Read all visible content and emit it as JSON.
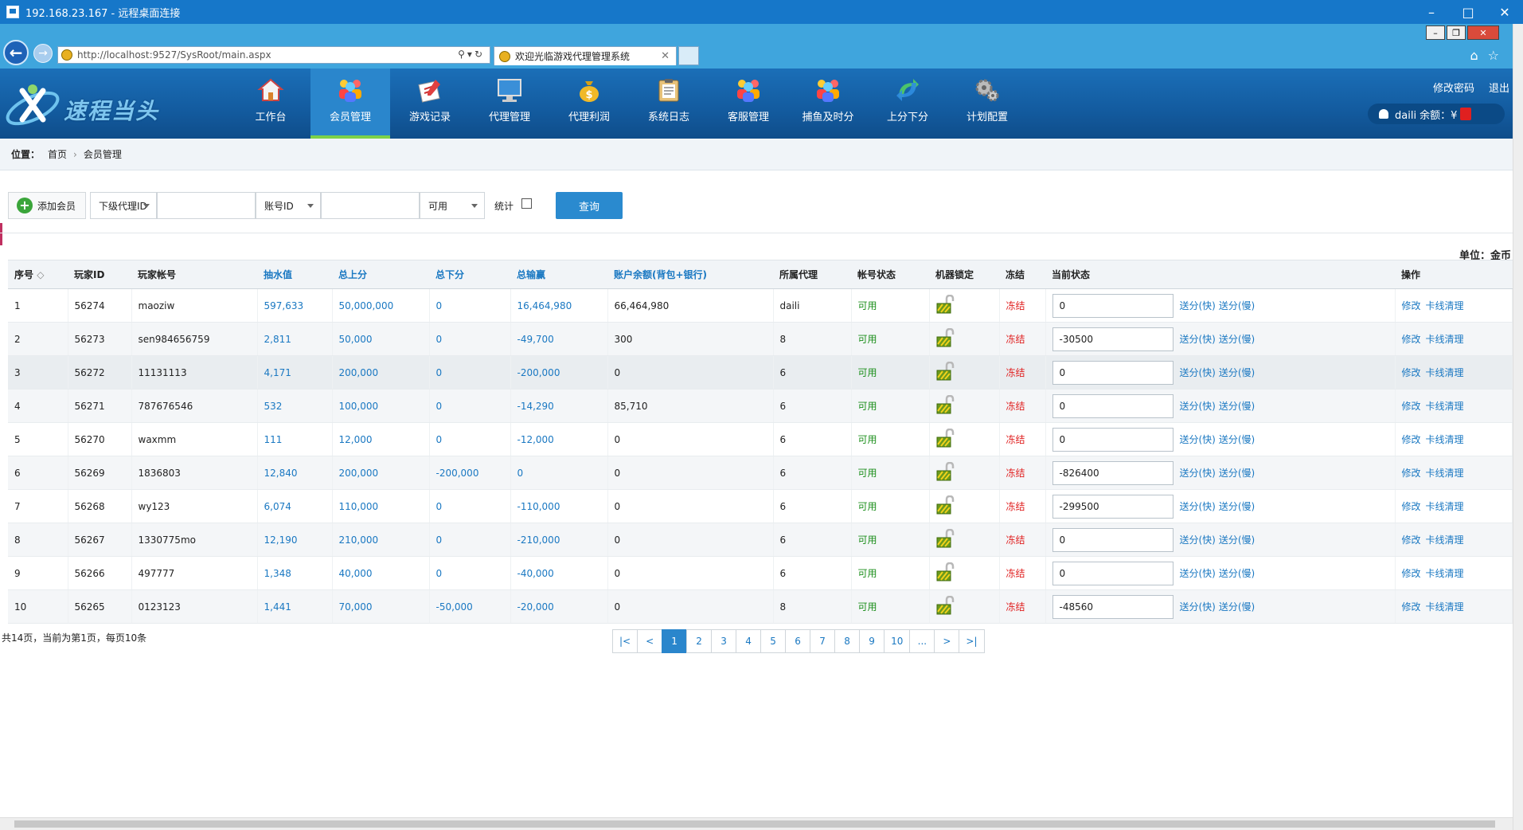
{
  "window": {
    "title": "192.168.23.167 - 远程桌面连接"
  },
  "browser": {
    "url": "http://localhost:9527/SysRoot/main.aspx",
    "tab_title": "欢迎光临游戏代理管理系统"
  },
  "header": {
    "logo_text": "速程当头",
    "menu": [
      {
        "label": "工作台",
        "icon": "home-icon"
      },
      {
        "label": "会员管理",
        "icon": "members-icon",
        "active": true
      },
      {
        "label": "游戏记录",
        "icon": "record-icon"
      },
      {
        "label": "代理管理",
        "icon": "monitor-icon"
      },
      {
        "label": "代理利润",
        "icon": "money-bag-icon"
      },
      {
        "label": "系统日志",
        "icon": "log-icon"
      },
      {
        "label": "客服管理",
        "icon": "service-icon"
      },
      {
        "label": "捕鱼及时分",
        "icon": "fish-icon"
      },
      {
        "label": "上分下分",
        "icon": "transfer-icon"
      },
      {
        "label": "计划配置",
        "icon": "gears-icon"
      }
    ],
    "change_password": "修改密码",
    "logout": "退出",
    "user_balance_text": "daili 余额：¥"
  },
  "breadcrumb": {
    "label": "位置：",
    "home": "首页",
    "current": "会员管理"
  },
  "toolbar": {
    "add_member": "添加会员",
    "filter1": "下级代理ID",
    "filter2": "账号ID",
    "status_select": "可用",
    "stat_label": "统计",
    "query": "查询"
  },
  "unit_label": "单位：金币",
  "table": {
    "headers": [
      "序号",
      "玩家ID",
      "玩家帐号",
      "抽水值",
      "总上分",
      "总下分",
      "总输赢",
      "账户余额(背包+银行)",
      "所属代理",
      "帐号状态",
      "机器锁定",
      "冻结",
      "当前状态",
      "操作"
    ],
    "sort_indicator": "◇",
    "rows": [
      {
        "no": "1",
        "id": "56274",
        "account": "maoziw",
        "rake": "597,633",
        "total_up": "50,000,000",
        "total_down": "0",
        "win_loss": "16,464,980",
        "balance": "66,464,980",
        "agent": "daili",
        "status": "可用",
        "freeze": "冻结",
        "state": "0"
      },
      {
        "no": "2",
        "id": "56273",
        "account": "sen984656759",
        "rake": "2,811",
        "total_up": "50,000",
        "total_down": "0",
        "win_loss": "-49,700",
        "balance": "300",
        "agent": "8",
        "status": "可用",
        "freeze": "冻结",
        "state": "-30500"
      },
      {
        "no": "3",
        "id": "56272",
        "account": "11131113",
        "rake": "4,171",
        "total_up": "200,000",
        "total_down": "0",
        "win_loss": "-200,000",
        "balance": "0",
        "agent": "6",
        "status": "可用",
        "freeze": "冻结",
        "state": "0"
      },
      {
        "no": "4",
        "id": "56271",
        "account": "787676546",
        "rake": "532",
        "total_up": "100,000",
        "total_down": "0",
        "win_loss": "-14,290",
        "balance": "85,710",
        "agent": "6",
        "status": "可用",
        "freeze": "冻结",
        "state": "0"
      },
      {
        "no": "5",
        "id": "56270",
        "account": "waxmm",
        "rake": "111",
        "total_up": "12,000",
        "total_down": "0",
        "win_loss": "-12,000",
        "balance": "0",
        "agent": "6",
        "status": "可用",
        "freeze": "冻结",
        "state": "0"
      },
      {
        "no": "6",
        "id": "56269",
        "account": "1836803",
        "rake": "12,840",
        "total_up": "200,000",
        "total_down": "-200,000",
        "win_loss": "0",
        "balance": "0",
        "agent": "6",
        "status": "可用",
        "freeze": "冻结",
        "state": "-826400"
      },
      {
        "no": "7",
        "id": "56268",
        "account": "wy123",
        "rake": "6,074",
        "total_up": "110,000",
        "total_down": "0",
        "win_loss": "-110,000",
        "balance": "0",
        "agent": "6",
        "status": "可用",
        "freeze": "冻结",
        "state": "-299500"
      },
      {
        "no": "8",
        "id": "56267",
        "account": "1330775mo",
        "rake": "12,190",
        "total_up": "210,000",
        "total_down": "0",
        "win_loss": "-210,000",
        "balance": "0",
        "agent": "6",
        "status": "可用",
        "freeze": "冻结",
        "state": "0"
      },
      {
        "no": "9",
        "id": "56266",
        "account": "497777",
        "rake": "1,348",
        "total_up": "40,000",
        "total_down": "0",
        "win_loss": "-40,000",
        "balance": "0",
        "agent": "6",
        "status": "可用",
        "freeze": "冻结",
        "state": "0"
      },
      {
        "no": "10",
        "id": "56265",
        "account": "0123123",
        "rake": "1,441",
        "total_up": "70,000",
        "total_down": "-50,000",
        "win_loss": "-20,000",
        "balance": "0",
        "agent": "8",
        "status": "可用",
        "freeze": "冻结",
        "state": "-48560"
      }
    ],
    "send_fast": "送分(快)",
    "send_slow": "送分(慢)",
    "op_edit": "修改",
    "op_clear": "卡线清理"
  },
  "pagination": {
    "info": "共14页，当前为第1页，每页10条",
    "first": "|<",
    "prev": "<",
    "pages": [
      "1",
      "2",
      "3",
      "4",
      "5",
      "6",
      "7",
      "8",
      "9",
      "10"
    ],
    "ellipsis": "...",
    "next": ">",
    "last": ">|",
    "current": "1"
  },
  "colors": {
    "header_blue": "#1b6fb8",
    "accent_blue": "#2a86cc",
    "active_green": "#7bd14a",
    "status_green": "#1c8f1c",
    "freeze_red": "#e02020"
  }
}
